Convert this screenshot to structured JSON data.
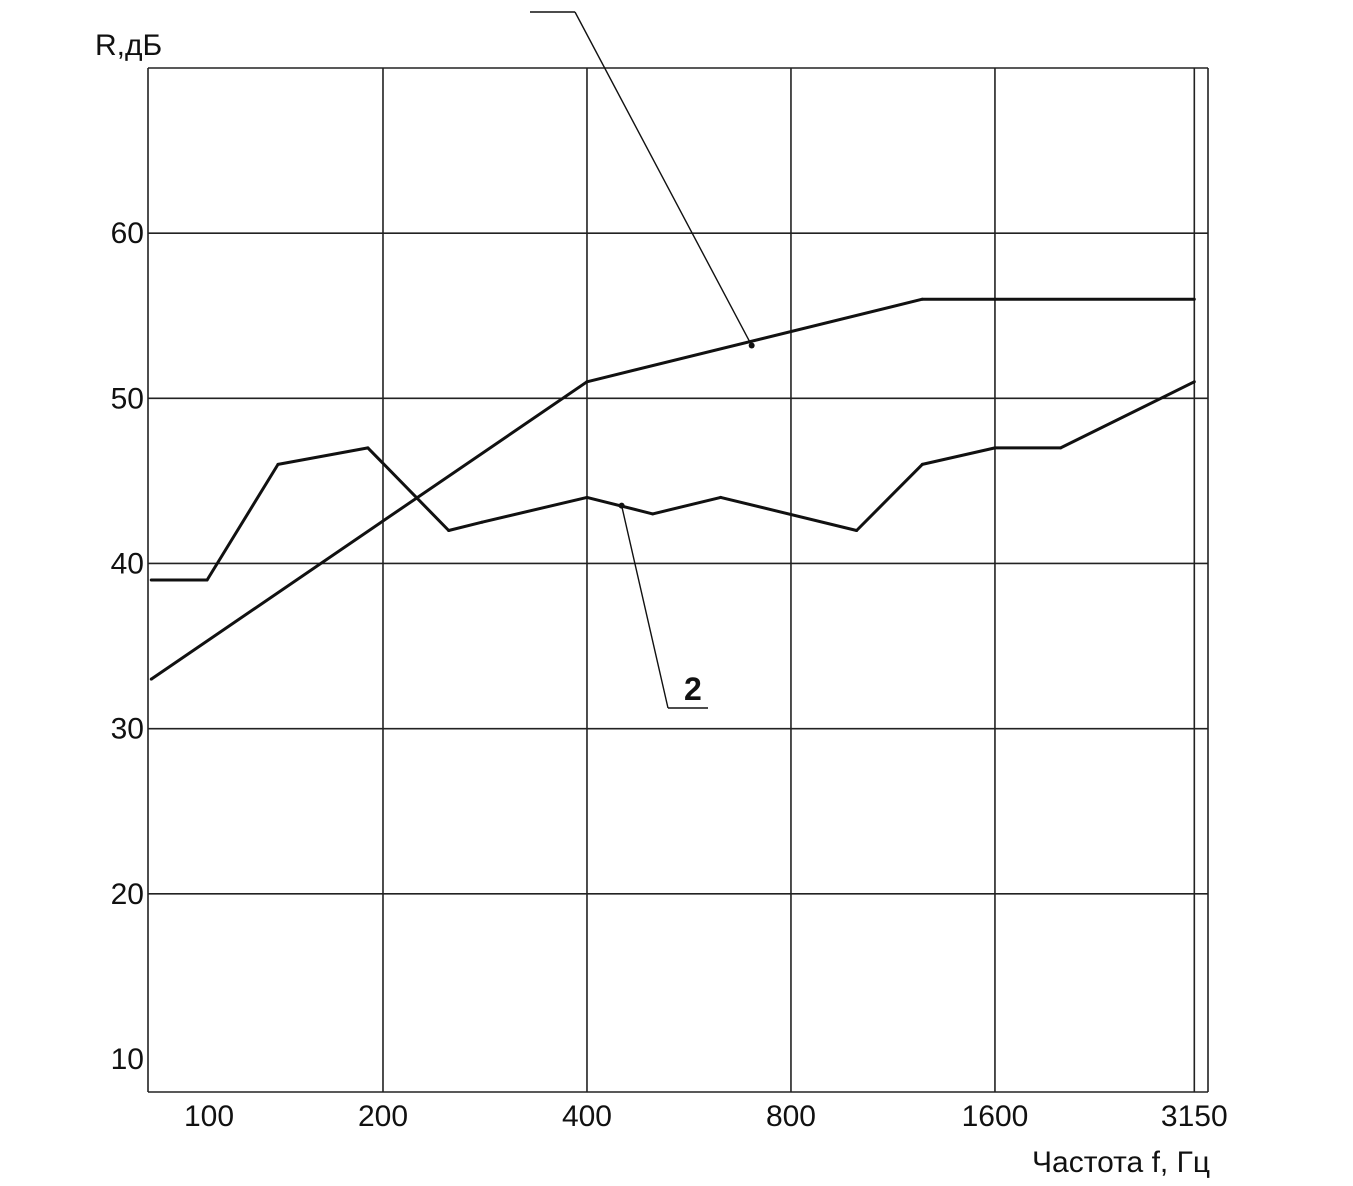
{
  "chart_data": {
    "type": "line",
    "title": "",
    "ylabel": "R,дБ",
    "xlabel": "Частота f, Гц",
    "x_scale": "log",
    "xlim": [
      90,
      3300
    ],
    "ylim": [
      8,
      70
    ],
    "grid": true,
    "x_ticks": [
      {
        "value": 100,
        "label": "100"
      },
      {
        "value": 200,
        "label": "200"
      },
      {
        "value": 400,
        "label": "400"
      },
      {
        "value": 800,
        "label": "800"
      },
      {
        "value": 1600,
        "label": "1600"
      },
      {
        "value": 3150,
        "label": "3150"
      }
    ],
    "x_gridlines": [
      200,
      400,
      800,
      1600,
      3150
    ],
    "y_ticks": [
      {
        "value": 10,
        "label": "10"
      },
      {
        "value": 20,
        "label": "20"
      },
      {
        "value": 30,
        "label": "30"
      },
      {
        "value": 40,
        "label": "40"
      },
      {
        "value": 50,
        "label": "50"
      },
      {
        "value": 60,
        "label": "60"
      }
    ],
    "y_gridlines": [
      20,
      30,
      40,
      50,
      60,
      70
    ],
    "series": [
      {
        "name": "",
        "callout": "",
        "x": [
          91,
          400,
          1250,
          1600,
          3150
        ],
        "y": [
          33,
          51,
          56,
          56,
          56
        ]
      },
      {
        "name": "2",
        "callout": "2",
        "x": [
          91,
          110,
          140,
          190,
          250,
          280,
          400,
          500,
          630,
          1000,
          1250,
          1600,
          2000,
          3150
        ],
        "y": [
          39,
          39,
          46,
          47,
          42,
          42.5,
          44,
          43,
          44,
          42,
          46,
          47,
          47,
          51
        ]
      }
    ]
  }
}
